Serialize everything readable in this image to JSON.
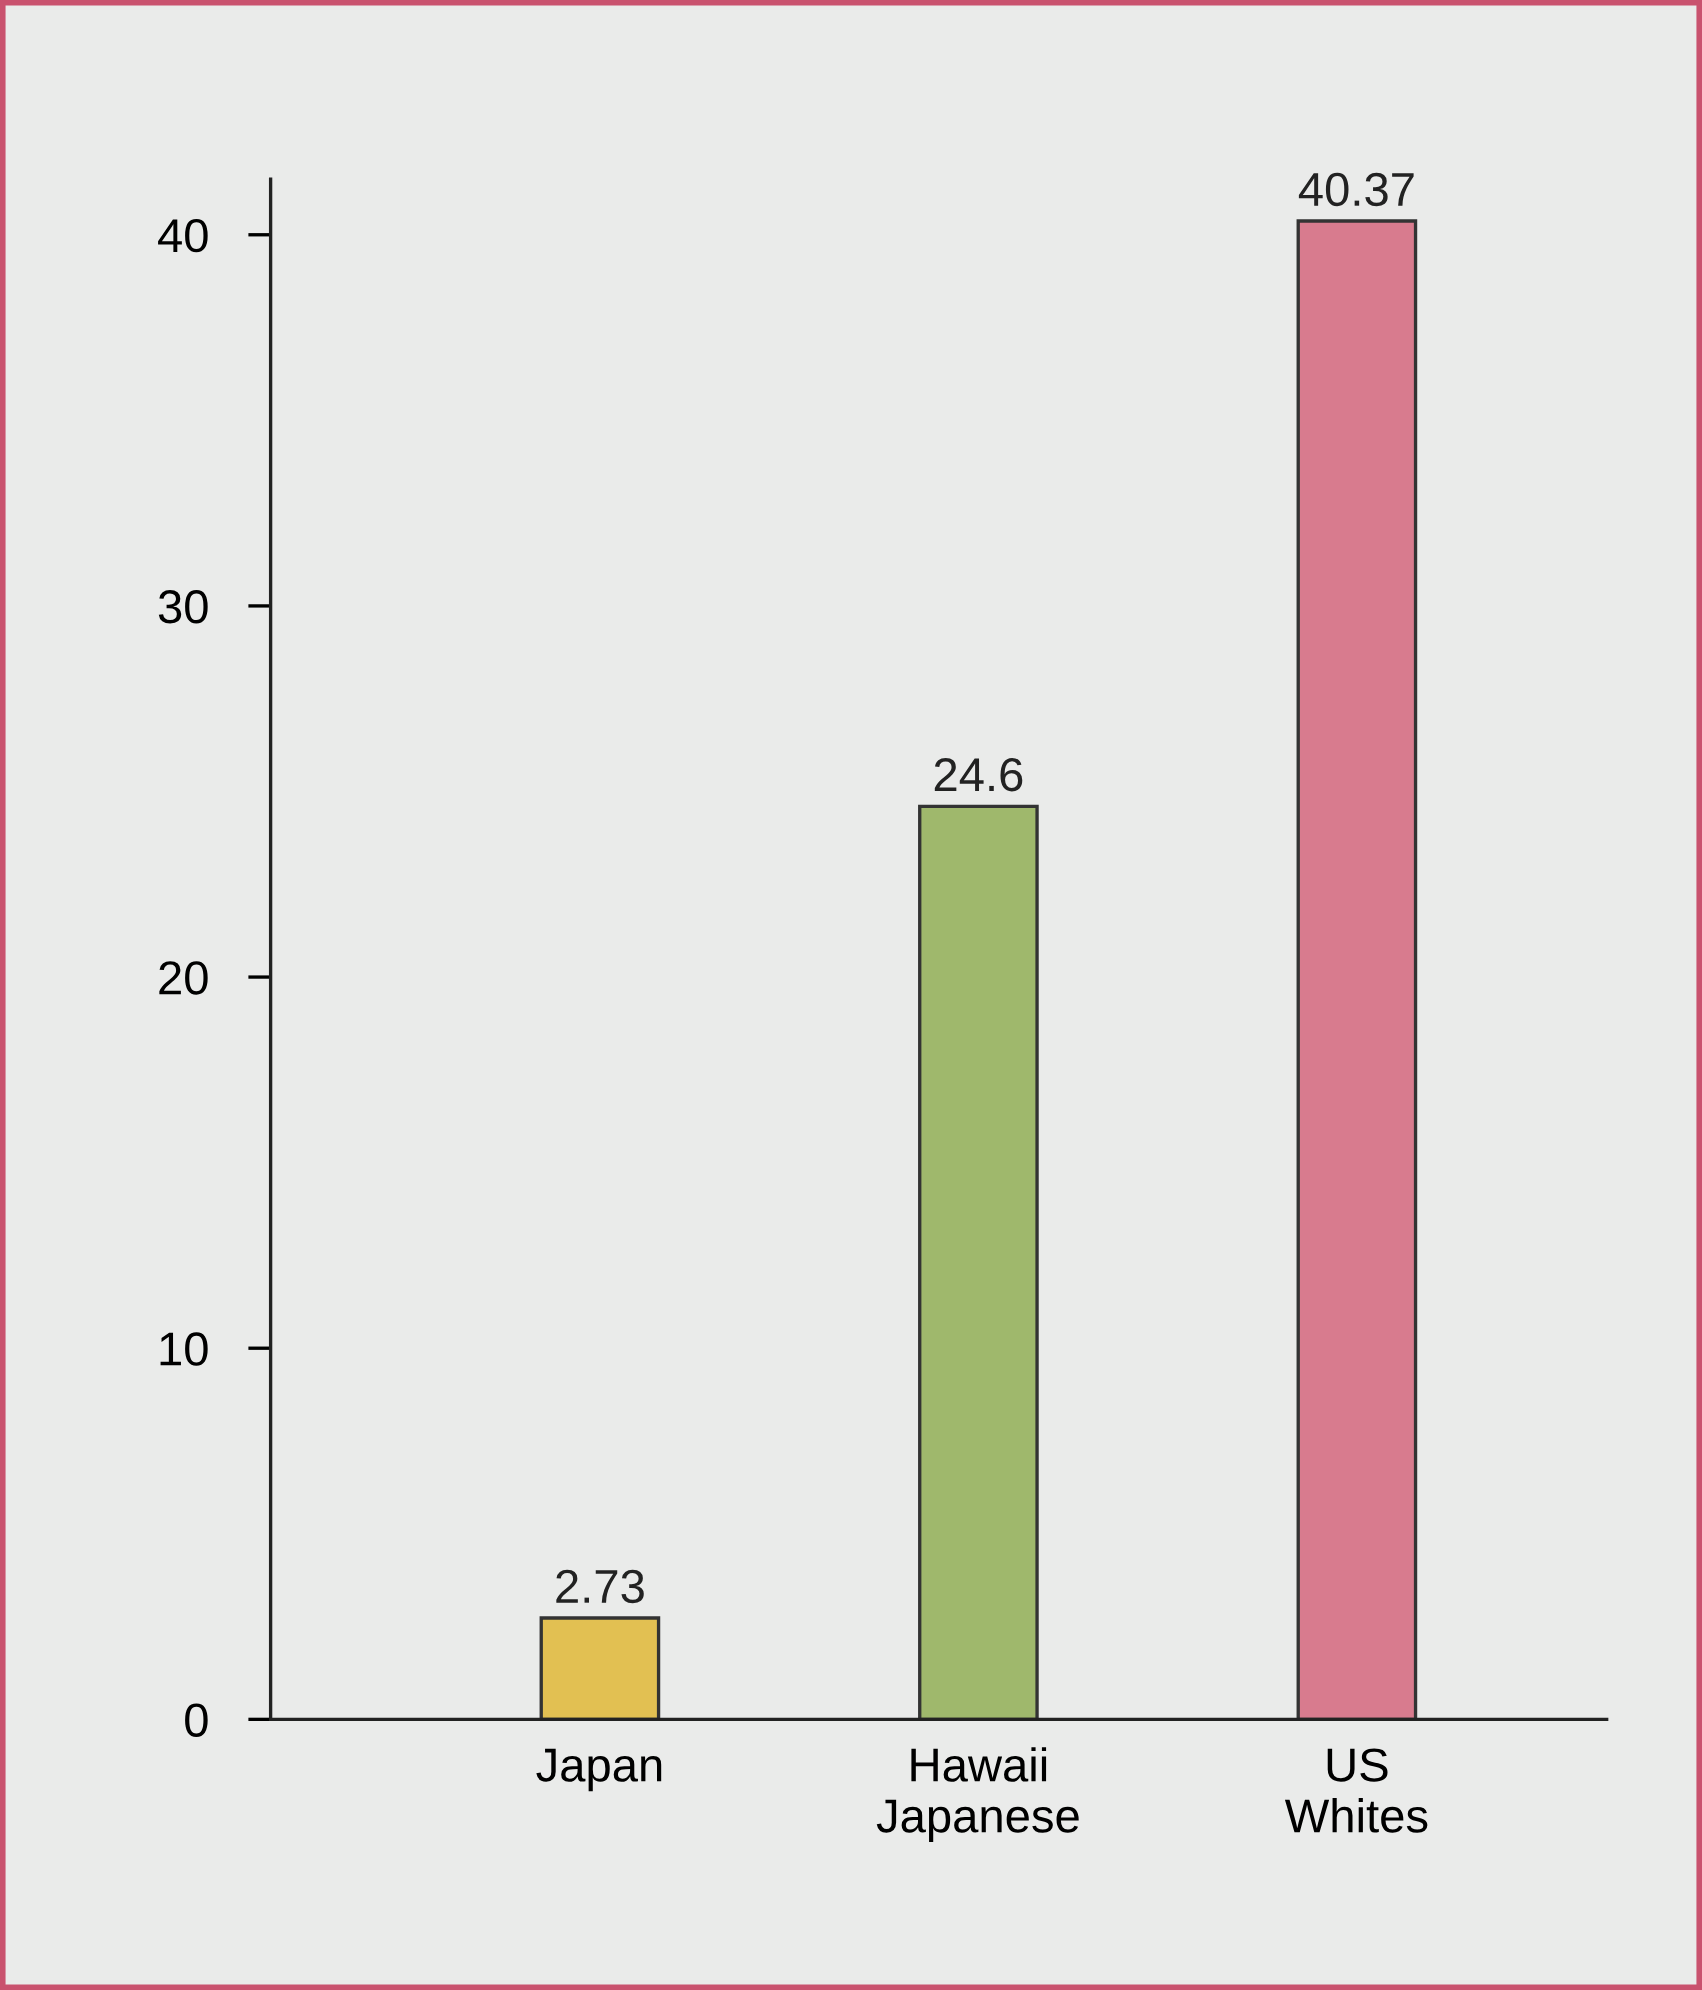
{
  "chart_data": {
    "type": "bar",
    "categories": [
      "Japan",
      "Hawaii\nJapanese",
      "US\nWhites"
    ],
    "values": [
      2.73,
      24.6,
      40.37
    ],
    "value_labels": [
      "2.73",
      "24.6",
      "40.37"
    ],
    "colors": [
      "#e2c052",
      "#9fb86c",
      "#d87b8e"
    ],
    "ylim": [
      0,
      41.5
    ],
    "yticks": [
      0,
      10,
      20,
      30,
      40
    ],
    "grid": false
  }
}
